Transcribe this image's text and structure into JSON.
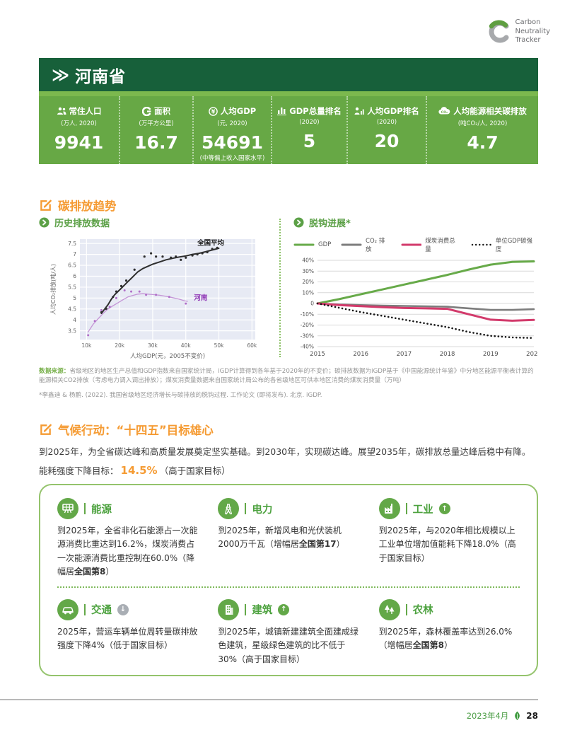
{
  "logo": {
    "line1": "Carbon",
    "line2": "Neutrality",
    "line3": "Tracker"
  },
  "header": {
    "marker": "≫",
    "title": "河南省"
  },
  "stats": [
    {
      "icon": "people-icon",
      "label": "常住人口",
      "unit": "(万人, 2020)",
      "value": "9941",
      "note": ""
    },
    {
      "icon": "area-icon",
      "label": "面积",
      "unit": "(万平方公里)",
      "value": "16.7",
      "note": ""
    },
    {
      "icon": "yuan-icon",
      "label": "人均GDP",
      "unit": "(元, 2020)",
      "value": "54691",
      "note": "(中等偏上收入国家水平)"
    },
    {
      "icon": "bar-chart-icon",
      "label": "GDP总量排名",
      "unit": "(2020)",
      "value": "5",
      "note": ""
    },
    {
      "icon": "person-rank-icon",
      "label": "人均GDP排名",
      "unit": "(2020)",
      "value": "20",
      "note": ""
    },
    {
      "icon": "co2-cloud-icon",
      "label": "人均能源相关碳排放",
      "unit": "(吨CO₂/人, 2020)",
      "value": "4.7",
      "note": ""
    }
  ],
  "trend_section": {
    "title": "碳排放趋势",
    "left_subtitle": "历史排放数据",
    "right_subtitle": "脱钩进展*"
  },
  "chart_data": [
    {
      "type": "scatter",
      "title": "历史排放数据",
      "xlabel": "人均GDP(元，2005不变价)",
      "ylabel": "人均CO₂排放(吨/人)",
      "xlim": [
        8,
        61
      ],
      "ylim": [
        3.1,
        7.7
      ],
      "bg": "#e7eaf4",
      "xticks": [
        10,
        20,
        30,
        40,
        50,
        60
      ],
      "xtick_labels": [
        "10k",
        "20k",
        "30k",
        "40k",
        "50k",
        "60k"
      ],
      "yticks": [
        3.5,
        4,
        4.5,
        5,
        5.5,
        6,
        6.5,
        7,
        7.5
      ],
      "series": [
        {
          "name": "全国平均",
          "color": "#2f2f2f",
          "width": 2,
          "dot_color": "#2f2f2f",
          "dot_r": 1.6,
          "label_color": "#1a1a1a",
          "label_at": [
            43.5,
            7.42
          ],
          "line": [
            [
              14.5,
              4.3
            ],
            [
              15.5,
              4.5
            ],
            [
              16.5,
              4.7
            ],
            [
              17.5,
              4.95
            ],
            [
              18.5,
              5.15
            ],
            [
              19.5,
              5.3
            ],
            [
              20.5,
              5.45
            ],
            [
              21.5,
              5.6
            ],
            [
              22.5,
              5.75
            ],
            [
              23.5,
              5.9
            ],
            [
              24.5,
              6.05
            ],
            [
              25.5,
              6.2
            ],
            [
              27,
              6.35
            ],
            [
              28.5,
              6.45
            ],
            [
              30,
              6.55
            ],
            [
              32,
              6.65
            ],
            [
              34,
              6.75
            ],
            [
              36,
              6.82
            ],
            [
              38,
              6.88
            ],
            [
              40,
              6.93
            ],
            [
              42,
              7.0
            ],
            [
              44,
              7.05
            ],
            [
              46,
              7.12
            ],
            [
              48,
              7.2
            ],
            [
              50,
              7.28
            ]
          ],
          "points": [
            [
              14.5,
              4.35
            ],
            [
              16,
              4.5
            ],
            [
              18,
              5.05
            ],
            [
              19,
              5.3
            ],
            [
              20.5,
              5.55
            ],
            [
              22,
              5.8
            ],
            [
              24.5,
              6.3
            ],
            [
              27.5,
              6.9
            ],
            [
              29.5,
              7.05
            ],
            [
              31,
              6.9
            ],
            [
              33,
              6.9
            ],
            [
              35.5,
              6.85
            ],
            [
              37,
              6.9
            ],
            [
              38.5,
              6.75
            ],
            [
              40,
              6.85
            ],
            [
              42,
              6.95
            ],
            [
              43.5,
              7.0
            ],
            [
              45,
              7.05
            ],
            [
              46.5,
              7.1
            ],
            [
              48,
              7.25
            ],
            [
              49.5,
              7.3
            ]
          ]
        },
        {
          "name": "河南",
          "color": "#c495d6",
          "width": 1.3,
          "dot_color": "#b06fc9",
          "dot_r": 1.5,
          "label_color": "#8f35b5",
          "label_at": [
            42.5,
            4.92
          ],
          "line": [
            [
              10.5,
              3.45
            ],
            [
              12,
              3.8
            ],
            [
              13.5,
              4.05
            ],
            [
              15,
              4.3
            ],
            [
              16.5,
              4.5
            ],
            [
              18,
              4.65
            ],
            [
              19.5,
              4.78
            ],
            [
              21,
              4.92
            ],
            [
              22.5,
              5.05
            ],
            [
              24,
              5.12
            ],
            [
              25.5,
              5.18
            ],
            [
              27,
              5.2
            ],
            [
              28.5,
              5.18
            ],
            [
              30,
              5.16
            ],
            [
              32,
              5.13
            ],
            [
              34,
              5.08
            ],
            [
              36,
              5.02
            ],
            [
              38,
              4.95
            ],
            [
              39.5,
              4.88
            ],
            [
              40.5,
              4.85
            ]
          ],
          "points": [
            [
              10.5,
              3.3
            ],
            [
              12.5,
              3.95
            ],
            [
              14.5,
              4.45
            ],
            [
              17,
              4.6
            ],
            [
              19,
              5.0
            ],
            [
              21.5,
              5.35
            ],
            [
              23.5,
              5.3
            ],
            [
              26,
              5.3
            ],
            [
              28,
              5.15
            ],
            [
              31,
              5.15
            ],
            [
              35,
              5.05
            ],
            [
              40,
              4.75
            ]
          ]
        }
      ]
    },
    {
      "type": "line",
      "title": "脱钩进展*",
      "x": [
        2015,
        2015.5,
        2016,
        2016.5,
        2017,
        2017.5,
        2018,
        2018.5,
        2019,
        2019.5,
        2020
      ],
      "xticks": [
        2015,
        2016,
        2017,
        2018,
        2019,
        2020
      ],
      "ylim": [
        -40,
        40
      ],
      "yticks": [
        40,
        30,
        20,
        10,
        0,
        -10,
        -20,
        -30,
        -40
      ],
      "ytick_labels": [
        "40%",
        "30%",
        "20%",
        "10%",
        "0",
        "-10%",
        "-20%",
        "-30%",
        "-40%"
      ],
      "legend_position": "top",
      "grid": true,
      "series": [
        {
          "name": "GDP",
          "color": "#67aa49",
          "style": "solid",
          "width": 3,
          "values": [
            0,
            4,
            8.5,
            13,
            17.5,
            22,
            26.5,
            31.5,
            36,
            38.5,
            39
          ]
        },
        {
          "name": "CO₂ 排放",
          "color": "#7d7d7d",
          "style": "solid",
          "width": 2.6,
          "values": [
            0,
            -1,
            -1.5,
            -2,
            -2.3,
            -2.6,
            -3,
            -4.5,
            -6,
            -6,
            -5.3
          ]
        },
        {
          "name": "煤炭消费总量",
          "color": "#d23a6b",
          "style": "solid",
          "width": 3,
          "values": [
            0,
            -1.5,
            -2.5,
            -3.5,
            -4.2,
            -4.5,
            -5,
            -10,
            -15,
            -16,
            -15.3
          ]
        },
        {
          "name": "单位GDP碳强度",
          "color": "#151515",
          "style": "dotted",
          "width": 2.6,
          "values": [
            0,
            -4,
            -8,
            -11.5,
            -15,
            -18.5,
            -22,
            -26.5,
            -30,
            -31.5,
            -32
          ]
        }
      ]
    }
  ],
  "sources": {
    "label": "数据来源：",
    "text": "省级地区的地区生产总值和GDP指数来自国家统计局，iGDP计算得到各年基于2020年的不变价；碳排放数据为iGDP基于《中国能源统计年鉴》中分地区能源平衡表计算的能源相关CO2排放（考虑电力调入调出排放）；煤炭消费量数据来自国家统计局公布的各省级地区可供本地区消费的煤炭消费量（万吨）",
    "footnote": "*李鑫迪 & 杨鹏. (2022). 我国省级地区经济增长与碳排放的脱钩过程. 工作论文 (即将发布). 北京. iGDP."
  },
  "action_section": {
    "title": "气候行动：“十四五”目标雄心",
    "paragraph": "到2025年，为全省碳达峰和高质量发展奠定坚实基础。到2030年，实现碳达峰。展望2035年，碳排放总量达峰后稳中有降。",
    "target_label": "能耗强度下降目标：",
    "target_value": "14.5%",
    "target_note": "（高于国家目标）",
    "cards": [
      {
        "icon": "solar-panel-icon",
        "label": "能源",
        "arrow": "",
        "text_pre": "到2025年，全省非化石能源占一次能源消费比重达到16.2%，煤炭消费占一次能源消费比重控制在60.0%（降幅居",
        "bold": "全国第8",
        "text_post": "）"
      },
      {
        "icon": "power-tower-icon",
        "label": "电力",
        "arrow": "",
        "text_pre": "到2025年，新增风电和光伏装机2000万千瓦（增幅居",
        "bold": "全国第17",
        "text_post": "）"
      },
      {
        "icon": "factory-icon",
        "label": "工业",
        "arrow": "up",
        "text_pre": "到2025年，与2020年相比规模以上工业单位增加值能耗下降18.0%（高于国家目标）",
        "bold": "",
        "text_post": ""
      },
      {
        "icon": "car-icon",
        "label": "交通",
        "arrow": "down",
        "text_pre": "2025年，营运车辆单位周转量碳排放强度下降4%（低于国家目标）",
        "bold": "",
        "text_post": ""
      },
      {
        "icon": "building-icon",
        "label": "建筑",
        "arrow": "up",
        "text_pre": "到2025年，城镇新建建筑全面建成绿色建筑，星级绿色建筑的比不低于30%（高于国家目标）",
        "bold": "",
        "text_post": ""
      },
      {
        "icon": "trees-icon",
        "label": "农林",
        "arrow": "",
        "text_pre": "到2025年，森林覆盖率达到26.0%（增幅居",
        "bold": "全国第8",
        "text_post": "）"
      }
    ]
  },
  "footer": {
    "date": "2023年4月",
    "page": "28"
  },
  "colors": {
    "dark_green": "#17603a",
    "band_green": "#67a845",
    "light_green": "#7cb84e",
    "accent_orange": "#f59b33",
    "text_green": "#5ba046",
    "henan_purple": "#8f35b5",
    "coal_pink": "#d23a6b"
  }
}
